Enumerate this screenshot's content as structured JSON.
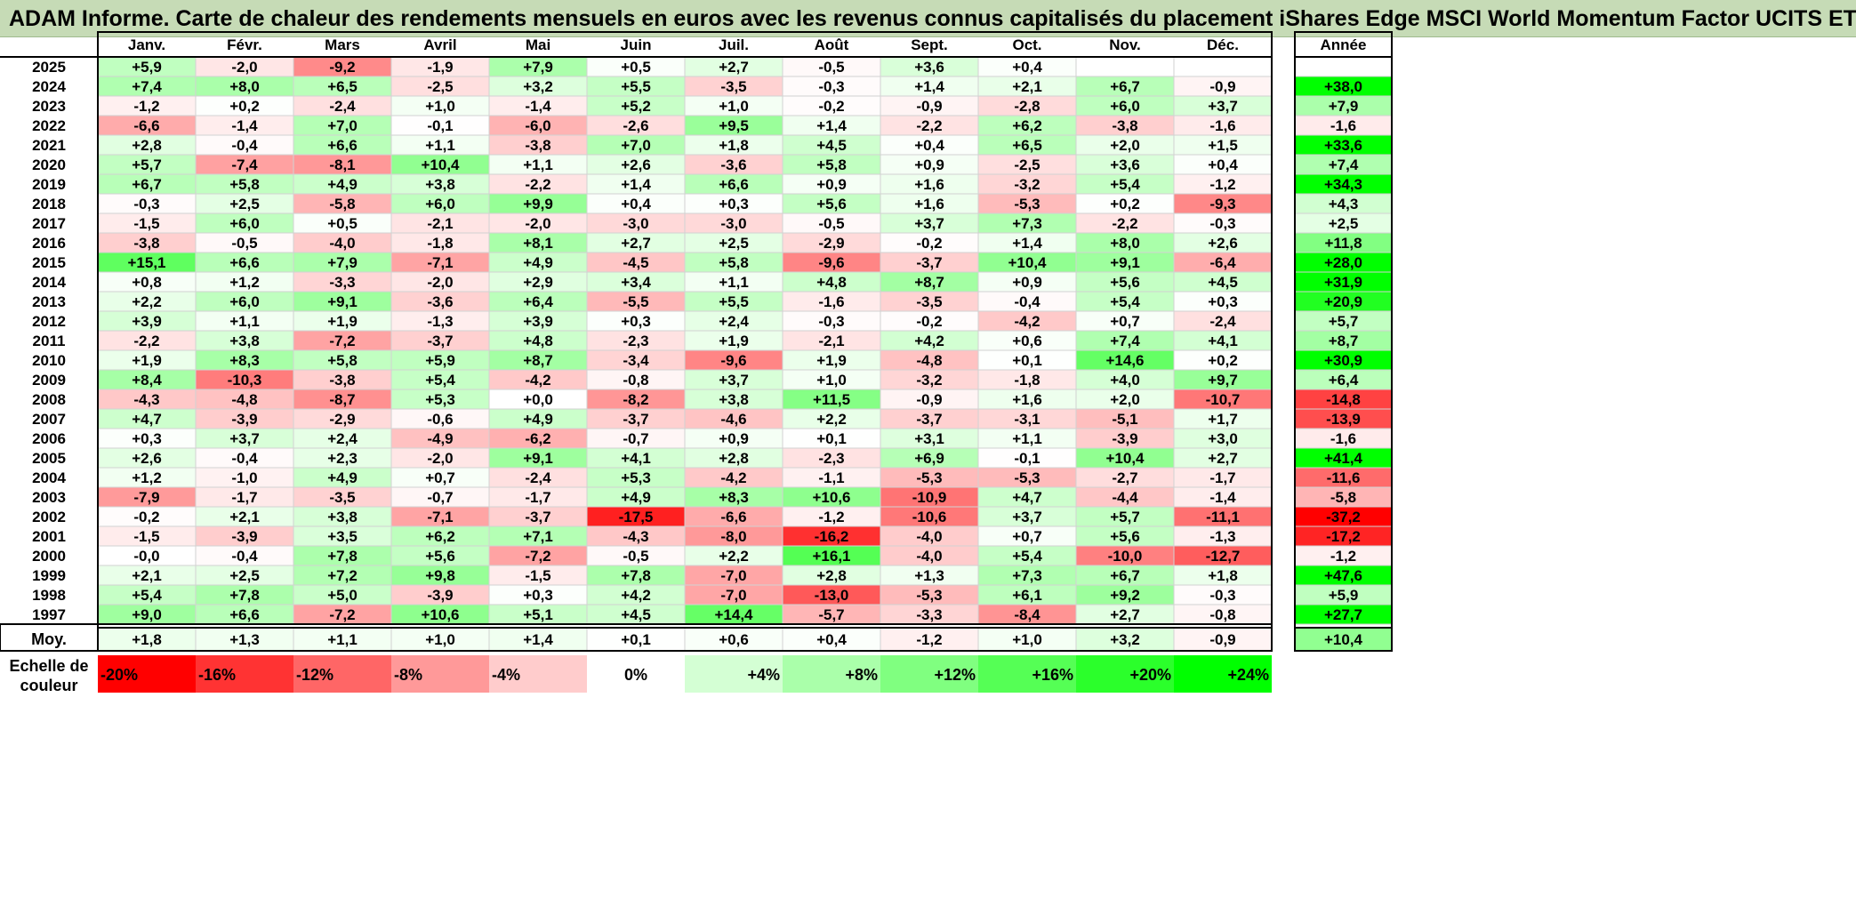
{
  "title": "ADAM Informe. Carte de chaleur des rendements mensuels en euros avec les revenus connus capitalisés du placement iShares Edge MSCI World Momentum Factor UCITS ETF",
  "chart_data": {
    "type": "heatmap",
    "months": [
      "Janv.",
      "Févr.",
      "Mars",
      "Avril",
      "Mai",
      "Juin",
      "Juil.",
      "Août",
      "Sept.",
      "Oct.",
      "Nov.",
      "Déc."
    ],
    "year_column_label": "Année",
    "average_label": "Moy.",
    "scale_label": "Echelle de couleur",
    "rows": [
      {
        "year": "2025",
        "values": [
          "+5,9",
          "-2,0",
          "-9,2",
          "-1,9",
          "+7,9",
          "+0,5",
          "+2,7",
          "-0,5",
          "+3,6",
          "+0,4",
          "",
          ""
        ],
        "annual": ""
      },
      {
        "year": "2024",
        "values": [
          "+7,4",
          "+8,0",
          "+6,5",
          "-2,5",
          "+3,2",
          "+5,5",
          "-3,5",
          "-0,3",
          "+1,4",
          "+2,1",
          "+6,7",
          "-0,9"
        ],
        "annual": "+38,0"
      },
      {
        "year": "2023",
        "values": [
          "-1,2",
          "+0,2",
          "-2,4",
          "+1,0",
          "-1,4",
          "+5,2",
          "+1,0",
          "-0,2",
          "-0,9",
          "-2,8",
          "+6,0",
          "+3,7"
        ],
        "annual": "+7,9"
      },
      {
        "year": "2022",
        "values": [
          "-6,6",
          "-1,4",
          "+7,0",
          "-0,1",
          "-6,0",
          "-2,6",
          "+9,5",
          "+1,4",
          "-2,2",
          "+6,2",
          "-3,8",
          "-1,6"
        ],
        "annual": "-1,6"
      },
      {
        "year": "2021",
        "values": [
          "+2,8",
          "-0,4",
          "+6,6",
          "+1,1",
          "-3,8",
          "+7,0",
          "+1,8",
          "+4,5",
          "+0,4",
          "+6,5",
          "+2,0",
          "+1,5"
        ],
        "annual": "+33,6"
      },
      {
        "year": "2020",
        "values": [
          "+5,7",
          "-7,4",
          "-8,1",
          "+10,4",
          "+1,1",
          "+2,6",
          "-3,6",
          "+5,8",
          "+0,9",
          "-2,5",
          "+3,6",
          "+0,4"
        ],
        "annual": "+7,4"
      },
      {
        "year": "2019",
        "values": [
          "+6,7",
          "+5,8",
          "+4,9",
          "+3,8",
          "-2,2",
          "+1,4",
          "+6,6",
          "+0,9",
          "+1,6",
          "-3,2",
          "+5,4",
          "-1,2"
        ],
        "annual": "+34,3"
      },
      {
        "year": "2018",
        "values": [
          "-0,3",
          "+2,5",
          "-5,8",
          "+6,0",
          "+9,9",
          "+0,4",
          "+0,3",
          "+5,6",
          "+1,6",
          "-5,3",
          "+0,2",
          "-9,3"
        ],
        "annual": "+4,3"
      },
      {
        "year": "2017",
        "values": [
          "-1,5",
          "+6,0",
          "+0,5",
          "-2,1",
          "-2,0",
          "-3,0",
          "-3,0",
          "-0,5",
          "+3,7",
          "+7,3",
          "-2,2",
          "-0,3"
        ],
        "annual": "+2,5"
      },
      {
        "year": "2016",
        "values": [
          "-3,8",
          "-0,5",
          "-4,0",
          "-1,8",
          "+8,1",
          "+2,7",
          "+2,5",
          "-2,9",
          "-0,2",
          "+1,4",
          "+8,0",
          "+2,6"
        ],
        "annual": "+11,8"
      },
      {
        "year": "2015",
        "values": [
          "+15,1",
          "+6,6",
          "+7,9",
          "-7,1",
          "+4,9",
          "-4,5",
          "+5,8",
          "-9,6",
          "-3,7",
          "+10,4",
          "+9,1",
          "-6,4"
        ],
        "annual": "+28,0"
      },
      {
        "year": "2014",
        "values": [
          "+0,8",
          "+1,2",
          "-3,3",
          "-2,0",
          "+2,9",
          "+3,4",
          "+1,1",
          "+4,8",
          "+8,7",
          "+0,9",
          "+5,6",
          "+4,5"
        ],
        "annual": "+31,9"
      },
      {
        "year": "2013",
        "values": [
          "+2,2",
          "+6,0",
          "+9,1",
          "-3,6",
          "+6,4",
          "-5,5",
          "+5,5",
          "-1,6",
          "-3,5",
          "-0,4",
          "+5,4",
          "+0,3"
        ],
        "annual": "+20,9"
      },
      {
        "year": "2012",
        "values": [
          "+3,9",
          "+1,1",
          "+1,9",
          "-1,3",
          "+3,9",
          "+0,3",
          "+2,4",
          "-0,3",
          "-0,2",
          "-4,2",
          "+0,7",
          "-2,4"
        ],
        "annual": "+5,7"
      },
      {
        "year": "2011",
        "values": [
          "-2,2",
          "+3,8",
          "-7,2",
          "-3,7",
          "+4,8",
          "-2,3",
          "+1,9",
          "-2,1",
          "+4,2",
          "+0,6",
          "+7,4",
          "+4,1"
        ],
        "annual": "+8,7"
      },
      {
        "year": "2010",
        "values": [
          "+1,9",
          "+8,3",
          "+5,8",
          "+5,9",
          "+8,7",
          "-3,4",
          "-9,6",
          "+1,9",
          "-4,8",
          "+0,1",
          "+14,6",
          "+0,2"
        ],
        "annual": "+30,9"
      },
      {
        "year": "2009",
        "values": [
          "+8,4",
          "-10,3",
          "-3,8",
          "+5,4",
          "-4,2",
          "-0,8",
          "+3,7",
          "+1,0",
          "-3,2",
          "-1,8",
          "+4,0",
          "+9,7"
        ],
        "annual": "+6,4"
      },
      {
        "year": "2008",
        "values": [
          "-4,3",
          "-4,8",
          "-8,7",
          "+5,3",
          "+0,0",
          "-8,2",
          "+3,8",
          "+11,5",
          "-0,9",
          "+1,6",
          "+2,0",
          "-10,7"
        ],
        "annual": "-14,8"
      },
      {
        "year": "2007",
        "values": [
          "+4,7",
          "-3,9",
          "-2,9",
          "-0,6",
          "+4,9",
          "-3,7",
          "-4,6",
          "+2,2",
          "-3,7",
          "-3,1",
          "-5,1",
          "+1,7"
        ],
        "annual": "-13,9"
      },
      {
        "year": "2006",
        "values": [
          "+0,3",
          "+3,7",
          "+2,4",
          "-4,9",
          "-6,2",
          "-0,7",
          "+0,9",
          "+0,1",
          "+3,1",
          "+1,1",
          "-3,9",
          "+3,0"
        ],
        "annual": "-1,6"
      },
      {
        "year": "2005",
        "values": [
          "+2,6",
          "-0,4",
          "+2,3",
          "-2,0",
          "+9,1",
          "+4,1",
          "+2,8",
          "-2,3",
          "+6,9",
          "-0,1",
          "+10,4",
          "+2,7"
        ],
        "annual": "+41,4"
      },
      {
        "year": "2004",
        "values": [
          "+1,2",
          "-1,0",
          "+4,9",
          "+0,7",
          "-2,4",
          "+5,3",
          "-4,2",
          "-1,1",
          "-5,3",
          "-5,3",
          "-2,7",
          "-1,7"
        ],
        "annual": "-11,6"
      },
      {
        "year": "2003",
        "values": [
          "-7,9",
          "-1,7",
          "-3,5",
          "-0,7",
          "-1,7",
          "+4,9",
          "+8,3",
          "+10,6",
          "-10,9",
          "+4,7",
          "-4,4",
          "-1,4"
        ],
        "annual": "-5,8"
      },
      {
        "year": "2002",
        "values": [
          "-0,2",
          "+2,1",
          "+3,8",
          "-7,1",
          "-3,7",
          "-17,5",
          "-6,6",
          "-1,2",
          "-10,6",
          "+3,7",
          "+5,7",
          "-11,1"
        ],
        "annual": "-37,2"
      },
      {
        "year": "2001",
        "values": [
          "-1,5",
          "-3,9",
          "+3,5",
          "+6,2",
          "+7,1",
          "-4,3",
          "-8,0",
          "-16,2",
          "-4,0",
          "+0,7",
          "+5,6",
          "-1,3"
        ],
        "annual": "-17,2"
      },
      {
        "year": "2000",
        "values": [
          "-0,0",
          "-0,4",
          "+7,8",
          "+5,6",
          "-7,2",
          "-0,5",
          "+2,2",
          "+16,1",
          "-4,0",
          "+5,4",
          "-10,0",
          "-12,7"
        ],
        "annual": "-1,2"
      },
      {
        "year": "1999",
        "values": [
          "+2,1",
          "+2,5",
          "+7,2",
          "+9,8",
          "-1,5",
          "+7,8",
          "-7,0",
          "+2,8",
          "+1,3",
          "+7,3",
          "+6,7",
          "+1,8"
        ],
        "annual": "+47,6"
      },
      {
        "year": "1998",
        "values": [
          "+5,4",
          "+7,8",
          "+5,0",
          "-3,9",
          "+0,3",
          "+4,2",
          "-7,0",
          "-13,0",
          "-5,3",
          "+6,1",
          "+9,2",
          "-0,3"
        ],
        "annual": "+5,9"
      },
      {
        "year": "1997",
        "values": [
          "+9,0",
          "+6,6",
          "-7,2",
          "+10,6",
          "+5,1",
          "+4,5",
          "+14,4",
          "-5,7",
          "-3,3",
          "-8,4",
          "+2,7",
          "-0,8"
        ],
        "annual": "+27,7"
      }
    ],
    "average": {
      "values": [
        "+1,8",
        "+1,3",
        "+1,1",
        "+1,0",
        "+1,4",
        "+0,1",
        "+0,6",
        "+0,4",
        "-1,2",
        "+1,0",
        "+3,2",
        "-0,9"
      ],
      "annual": "+10,4"
    },
    "scale": [
      {
        "label": "-20%",
        "value": -20,
        "color": "#ff0000"
      },
      {
        "label": "-16%",
        "value": -16,
        "color": "#ff3333"
      },
      {
        "label": "-12%",
        "value": -12,
        "color": "#ff6666"
      },
      {
        "label": "-8%",
        "value": -8,
        "color": "#ff9999"
      },
      {
        "label": "-4%",
        "value": -4,
        "color": "#ffcccc"
      },
      {
        "label": "0%",
        "value": 0,
        "color": "#ffffff"
      },
      {
        "label": "+4%",
        "value": 4,
        "color": "#d4ffd4"
      },
      {
        "label": "+8%",
        "value": 8,
        "color": "#aaffaa"
      },
      {
        "label": "+12%",
        "value": 12,
        "color": "#80ff80"
      },
      {
        "label": "+16%",
        "value": 16,
        "color": "#55ff55"
      },
      {
        "label": "+20%",
        "value": 20,
        "color": "#2bff2b"
      },
      {
        "label": "+24%",
        "value": 24,
        "color": "#00ff00"
      }
    ]
  }
}
